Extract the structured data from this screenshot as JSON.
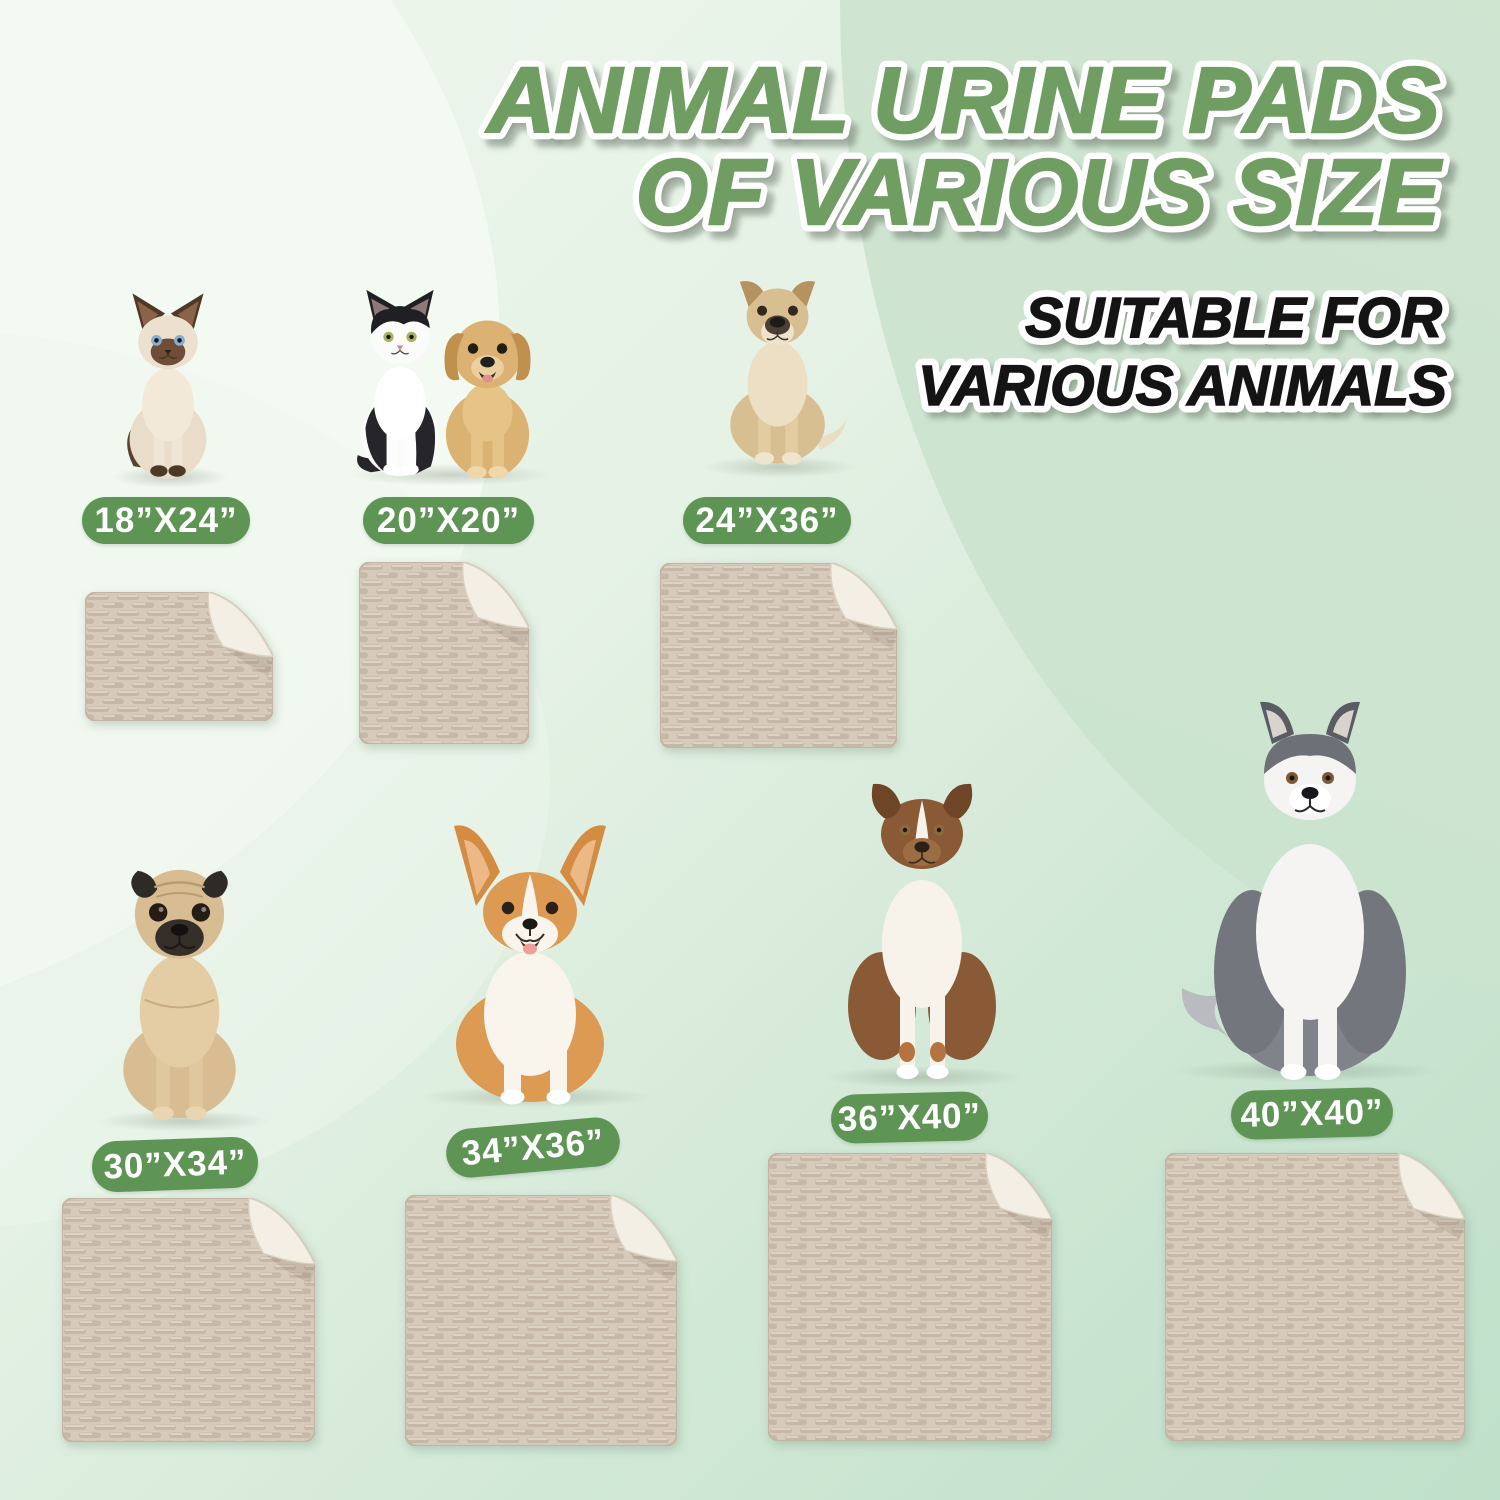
{
  "header": {
    "title_line1": "ANIMAL URINE PADS",
    "title_line2": "OF VARIOUS SIZE",
    "subtitle_line1": "SUITABLE FOR",
    "subtitle_line2": "VARIOUS ANIMALS"
  },
  "colors": {
    "title_green": "#6f9d62",
    "badge_green": "#5e9454",
    "badge_text": "#ffffff",
    "pad_top": "#d6cabb",
    "pad_texture": "#c6b7a6",
    "pad_underside": "#f3efe4",
    "background_mint": "#cde3cc"
  },
  "items": [
    {
      "size_label": "18”X24”",
      "animal": "siamese-cat"
    },
    {
      "size_label": "20”X20”",
      "animal": "black-white-cat-and-labrador-puppy"
    },
    {
      "size_label": "24”X36”",
      "animal": "tan-mixed-breed-dog"
    },
    {
      "size_label": "30”X34”",
      "animal": "pug"
    },
    {
      "size_label": "34”X36”",
      "animal": "corgi"
    },
    {
      "size_label": "36”X40”",
      "animal": "australian-shepherd"
    },
    {
      "size_label": "40”X40”",
      "animal": "siberian-husky"
    }
  ]
}
